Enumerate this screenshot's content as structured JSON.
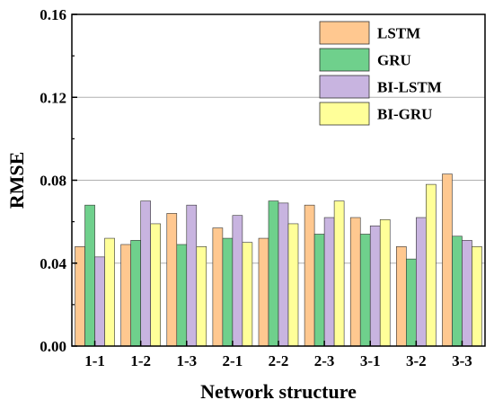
{
  "chart_data": {
    "type": "bar",
    "xlabel": "Network structure",
    "ylabel": "RMSE",
    "ylim": [
      0,
      0.16
    ],
    "yticks": [
      "0.00",
      "0.04",
      "0.08",
      "0.12",
      "0.16"
    ],
    "categories": [
      "1-1",
      "1-2",
      "1-3",
      "2-1",
      "2-2",
      "2-3",
      "3-1",
      "3-2",
      "3-3"
    ],
    "grid": "horizontal",
    "legend_position": "top-right",
    "series": [
      {
        "name": "LSTM",
        "color": "#FFC890",
        "values": [
          0.048,
          0.049,
          0.064,
          0.057,
          0.052,
          0.068,
          0.062,
          0.048,
          0.083
        ]
      },
      {
        "name": "GRU",
        "color": "#6FD08C",
        "values": [
          0.068,
          0.051,
          0.049,
          0.052,
          0.07,
          0.054,
          0.054,
          0.042,
          0.053
        ]
      },
      {
        "name": "BI-LSTM",
        "color": "#C8B4E0",
        "values": [
          0.043,
          0.07,
          0.068,
          0.063,
          0.069,
          0.062,
          0.058,
          0.062,
          0.051
        ]
      },
      {
        "name": "BI-GRU",
        "color": "#FFFF99",
        "values": [
          0.052,
          0.059,
          0.048,
          0.05,
          0.059,
          0.07,
          0.061,
          0.078,
          0.048
        ]
      }
    ]
  }
}
